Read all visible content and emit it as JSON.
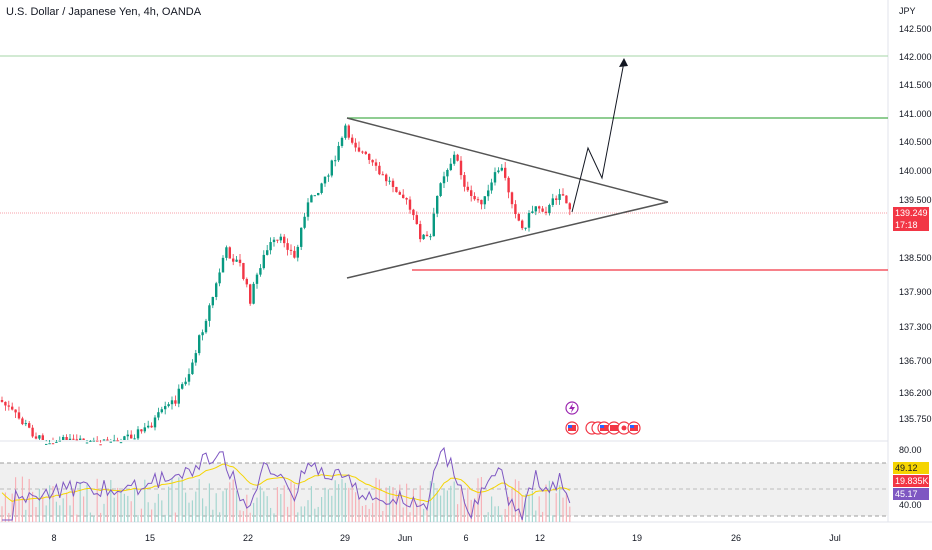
{
  "header": {
    "title": "U.S. Dollar / Japanese Yen, 4h, OANDA"
  },
  "price_axis": {
    "currency": "JPY",
    "ticks": [
      "142.500",
      "142.000",
      "141.500",
      "141.000",
      "140.500",
      "140.000",
      "139.500",
      "138.500",
      "137.900",
      "137.300",
      "136.700",
      "136.200",
      "135.750"
    ]
  },
  "badges": {
    "price": "139.249",
    "countdown": "17:18",
    "rsi_a": "49.12",
    "volume": "19.835K",
    "rsi_b": "45.17"
  },
  "indicator_axis": {
    "top": "80.00",
    "bottom": "40.00"
  },
  "time_axis": {
    "ticks": [
      "8",
      "15",
      "22",
      "29",
      "Jun",
      "6",
      "12",
      "19",
      "26",
      "Jul"
    ]
  },
  "icons": [
    "lightning-event-icon",
    "us-flag-event-icon"
  ],
  "colors": {
    "up": "#089981",
    "down": "#f23645",
    "resistance": "#4caf50",
    "support": "#f23645",
    "trendline": "#555555",
    "rsi": "#7e57c2",
    "rsi_ma": "#f5d400"
  }
}
